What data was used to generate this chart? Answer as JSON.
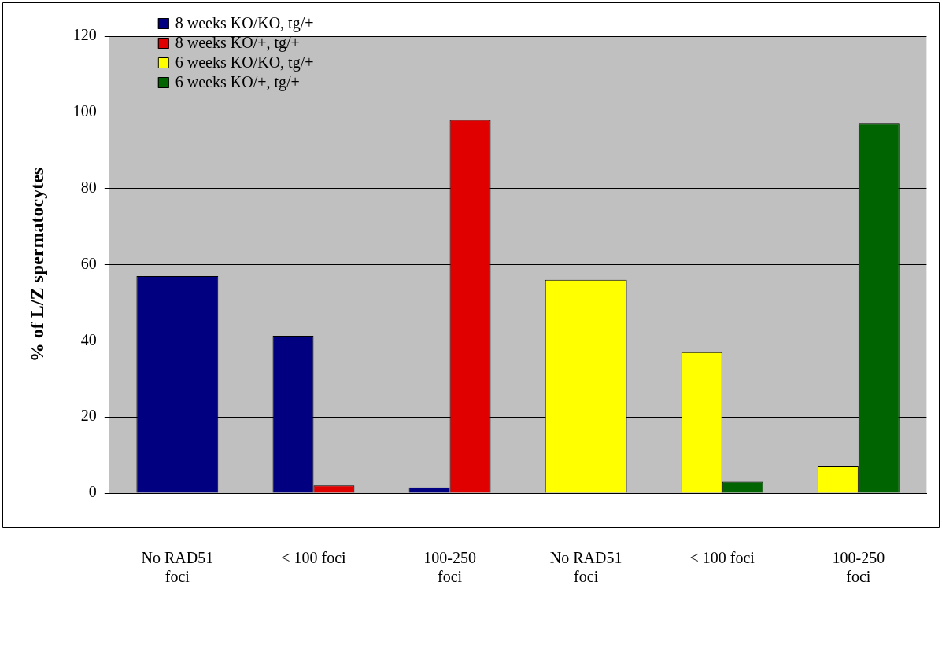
{
  "chart_data": {
    "type": "bar",
    "ylabel": "% of L/Z spermatocytes",
    "categories": [
      "No RAD51 foci",
      "< 100 foci",
      "100-250 foci",
      "No RAD51 foci",
      "< 100 foci",
      "100-250 foci"
    ],
    "series": [
      {
        "name": "8 weeks KO/KO, tg/+",
        "color": "#000080",
        "values": [
          57,
          41.3,
          1.5,
          null,
          null,
          null
        ]
      },
      {
        "name": "8 weeks KO/+, tg/+",
        "color": "#e00000",
        "values": [
          null,
          2,
          98,
          null,
          null,
          null
        ]
      },
      {
        "name": "6 weeks KO/KO, tg/+",
        "color": "#ffff00",
        "values": [
          null,
          null,
          null,
          56,
          37,
          7
        ]
      },
      {
        "name": "6 weeks KO/+, tg/+",
        "color": "#006400",
        "values": [
          null,
          null,
          null,
          null,
          3,
          97
        ]
      }
    ],
    "ylim": [
      0,
      120
    ],
    "yticks": [
      0,
      20,
      40,
      60,
      80,
      100,
      120
    ],
    "grid": "y",
    "legend": "top left"
  }
}
